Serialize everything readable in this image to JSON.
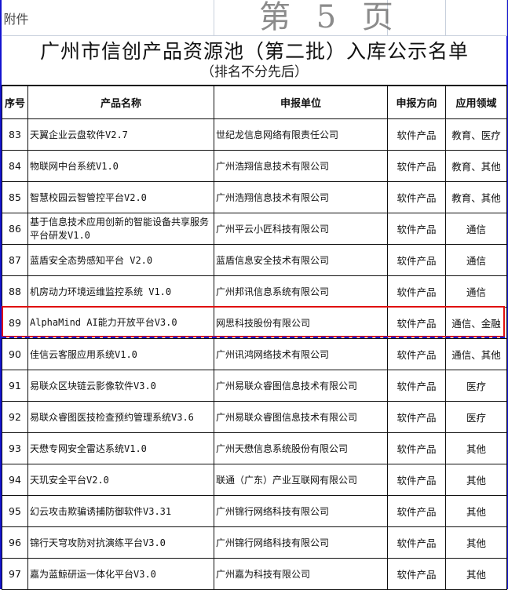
{
  "attachment_label": "附件",
  "title": "广州市信创产品资源池（第二批）入库公示名单",
  "subtitle": "（排名不分先后）",
  "headers": {
    "no": "序号",
    "name": "产品名称",
    "org": "申报单位",
    "direction": "申报方向",
    "field": "应用领域"
  },
  "rows": [
    {
      "no": "83",
      "name": "天翼企业云盘软件V2.7",
      "org": "世纪龙信息网络有限责任公司",
      "direction": "软件产品",
      "field": "教育、医疗"
    },
    {
      "no": "84",
      "name": "物联网中台系统V1.0",
      "org": "广州浩翔信息技术有限公司",
      "direction": "软件产品",
      "field": "教育、其他"
    },
    {
      "no": "85",
      "name": "智慧校园云智管控平台V2.0",
      "org": "广州浩翔信息技术有限公司",
      "direction": "软件产品",
      "field": "教育、其他"
    },
    {
      "no": "86",
      "name": "基于信息技术应用创新的智能设备共享服务平台研发V1.0",
      "org": "广州平云小匠科技有限公司",
      "direction": "软件产品",
      "field": "通信"
    },
    {
      "no": "87",
      "name": "蓝盾安全态势感知平台 V2.0",
      "org": "蓝盾信息安全技术有限公司",
      "direction": "软件产品",
      "field": "通信"
    },
    {
      "no": "88",
      "name": "机房动力环境运维监控系统 V1.0",
      "org": "广州邦讯信息系统有限公司",
      "direction": "软件产品",
      "field": "通信"
    },
    {
      "no": "89",
      "name": "AlphaMind AI能力开放平台V3.0",
      "org": "网思科技股份有限公司",
      "direction": "软件产品",
      "field": "通信、金融"
    },
    {
      "no": "90",
      "name": "佳信云客服应用系统V1.0",
      "org": "广州讯鸿网络技术有限公司",
      "direction": "软件产品",
      "field": "通信、其他"
    },
    {
      "no": "91",
      "name": "易联众区块链云影像软件V3.0",
      "org": "广州易联众睿图信息技术有限公司",
      "direction": "软件产品",
      "field": "医疗"
    },
    {
      "no": "92",
      "name": "易联众睿图医技检查预约管理系统V3.6",
      "org": "广州易联众睿图信息技术有限公司",
      "direction": "软件产品",
      "field": "医疗"
    },
    {
      "no": "93",
      "name": "天懋专网安全雷达系统V1.0",
      "org": "广州天懋信息系统股份有限公司",
      "direction": "软件产品",
      "field": "其他"
    },
    {
      "no": "94",
      "name": "天玑安全平台V2.0",
      "org": "联通（广东）产业互联网有限公司",
      "direction": "软件产品",
      "field": "其他"
    },
    {
      "no": "95",
      "name": "幻云攻击欺骗诱捕防御软件V3.31",
      "org": "广州锦行网络科技有限公司",
      "direction": "软件产品",
      "field": "其他"
    },
    {
      "no": "96",
      "name": "锦行天穹攻防对抗演练平台V3.0",
      "org": "广州锦行网络科技有限公司",
      "direction": "软件产品",
      "field": "其他"
    },
    {
      "no": "97",
      "name": "嘉为蓝鲸研运一体化平台V3.0",
      "org": "广州嘉为科技有限公司",
      "direction": "软件产品",
      "field": "其他"
    }
  ],
  "highlighted_row": "89",
  "watermark": "第 5 页",
  "colors": {
    "border": "#111111",
    "highlight": "#e01010",
    "frame": "#1414d0"
  }
}
